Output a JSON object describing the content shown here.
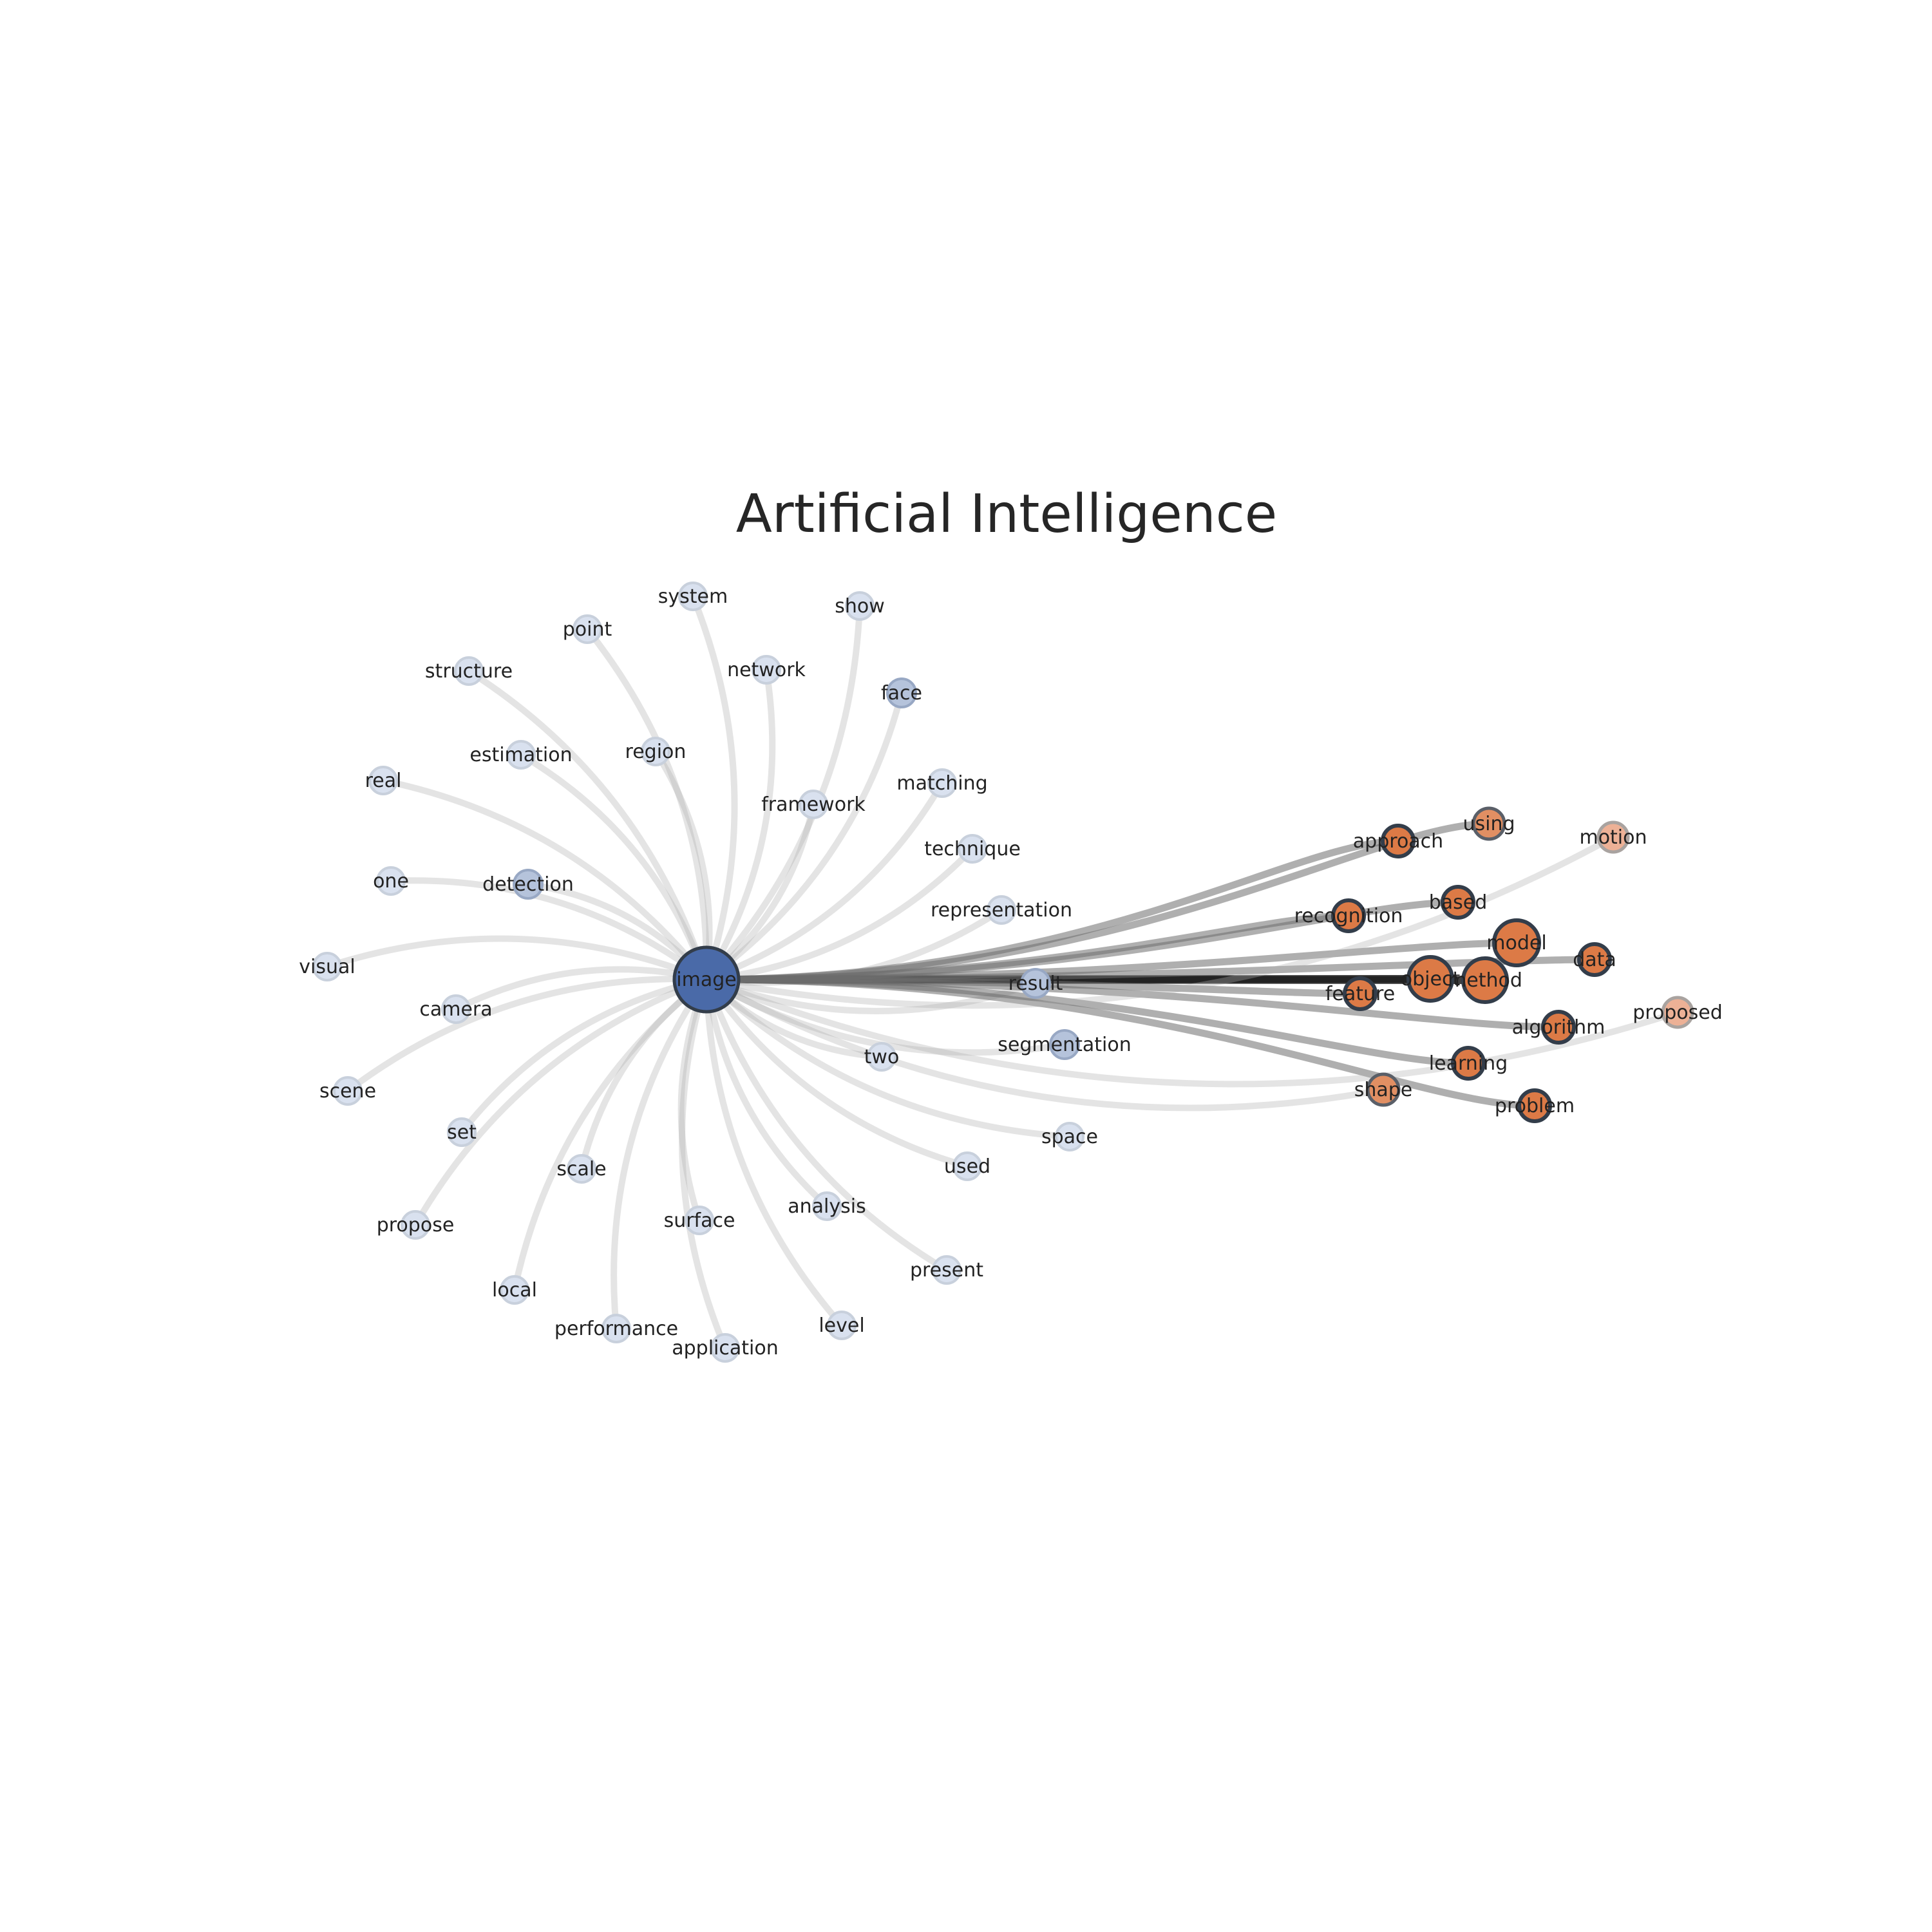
{
  "title": "Artificial Intelligence",
  "colors": {
    "blue_strong": "#4a6aa8",
    "blue_light": "#d9e1ef",
    "orange_strong": "#dc7a46",
    "orange_light": "#edb196",
    "stroke_dark": "#333d4a",
    "stroke_light": "#c8d0dc",
    "edge_grey": "#b3b3b3",
    "edge_dark": "#1f1f1f"
  },
  "nodes": [
    {
      "id": "image",
      "label": "image",
      "group": "hub-blue"
    },
    {
      "id": "system",
      "label": "system",
      "group": "blue-leaf"
    },
    {
      "id": "show",
      "label": "show",
      "group": "blue-leaf"
    },
    {
      "id": "point",
      "label": "point",
      "group": "blue-leaf"
    },
    {
      "id": "structure",
      "label": "structure",
      "group": "blue-leaf"
    },
    {
      "id": "network",
      "label": "network",
      "group": "blue-leaf"
    },
    {
      "id": "face",
      "label": "face",
      "group": "blue-mid"
    },
    {
      "id": "estimation",
      "label": "estimation",
      "group": "blue-leaf"
    },
    {
      "id": "region",
      "label": "region",
      "group": "blue-leaf"
    },
    {
      "id": "real",
      "label": "real",
      "group": "blue-leaf"
    },
    {
      "id": "matching",
      "label": "matching",
      "group": "blue-leaf"
    },
    {
      "id": "framework",
      "label": "framework",
      "group": "blue-leaf"
    },
    {
      "id": "technique",
      "label": "technique",
      "group": "blue-leaf"
    },
    {
      "id": "one",
      "label": "one",
      "group": "blue-leaf"
    },
    {
      "id": "detection",
      "label": "detection",
      "group": "blue-mid"
    },
    {
      "id": "representation",
      "label": "representation",
      "group": "blue-leaf"
    },
    {
      "id": "visual",
      "label": "visual",
      "group": "blue-leaf"
    },
    {
      "id": "result",
      "label": "result",
      "group": "blue-mid"
    },
    {
      "id": "camera",
      "label": "camera",
      "group": "blue-leaf"
    },
    {
      "id": "segmentation",
      "label": "segmentation",
      "group": "blue-mid"
    },
    {
      "id": "two",
      "label": "two",
      "group": "blue-leaf"
    },
    {
      "id": "scene",
      "label": "scene",
      "group": "blue-leaf"
    },
    {
      "id": "set",
      "label": "set",
      "group": "blue-leaf"
    },
    {
      "id": "space",
      "label": "space",
      "group": "blue-leaf"
    },
    {
      "id": "scale",
      "label": "scale",
      "group": "blue-leaf"
    },
    {
      "id": "used",
      "label": "used",
      "group": "blue-leaf"
    },
    {
      "id": "analysis",
      "label": "analysis",
      "group": "blue-leaf"
    },
    {
      "id": "surface",
      "label": "surface",
      "group": "blue-leaf"
    },
    {
      "id": "propose",
      "label": "propose",
      "group": "blue-leaf"
    },
    {
      "id": "present",
      "label": "present",
      "group": "blue-leaf"
    },
    {
      "id": "local",
      "label": "local",
      "group": "blue-leaf"
    },
    {
      "id": "level",
      "label": "level",
      "group": "blue-leaf"
    },
    {
      "id": "performance",
      "label": "performance",
      "group": "blue-leaf"
    },
    {
      "id": "application",
      "label": "application",
      "group": "blue-leaf"
    },
    {
      "id": "using",
      "label": "using",
      "group": "orange-mid"
    },
    {
      "id": "motion",
      "label": "motion",
      "group": "orange-light"
    },
    {
      "id": "approach",
      "label": "approach",
      "group": "orange"
    },
    {
      "id": "based",
      "label": "based",
      "group": "orange"
    },
    {
      "id": "recognition",
      "label": "recognition",
      "group": "orange"
    },
    {
      "id": "model",
      "label": "model",
      "group": "orange-hub"
    },
    {
      "id": "data",
      "label": "data",
      "group": "orange"
    },
    {
      "id": "object",
      "label": "object",
      "group": "orange-big"
    },
    {
      "id": "method",
      "label": "method",
      "group": "orange-big"
    },
    {
      "id": "feature",
      "label": "feature",
      "group": "orange"
    },
    {
      "id": "proposed",
      "label": "proposed",
      "group": "orange-light"
    },
    {
      "id": "algorithm",
      "label": "algorithm",
      "group": "orange"
    },
    {
      "id": "learning",
      "label": "learning",
      "group": "orange"
    },
    {
      "id": "shape",
      "label": "shape",
      "group": "orange-mid"
    },
    {
      "id": "problem",
      "label": "problem",
      "group": "orange"
    }
  ],
  "edges": [
    {
      "source": "image",
      "target": "system",
      "strength": "weak"
    },
    {
      "source": "image",
      "target": "show",
      "strength": "weak"
    },
    {
      "source": "image",
      "target": "point",
      "strength": "weak"
    },
    {
      "source": "image",
      "target": "structure",
      "strength": "weak"
    },
    {
      "source": "image",
      "target": "network",
      "strength": "weak"
    },
    {
      "source": "image",
      "target": "face",
      "strength": "weak"
    },
    {
      "source": "image",
      "target": "estimation",
      "strength": "weak"
    },
    {
      "source": "image",
      "target": "region",
      "strength": "weak"
    },
    {
      "source": "image",
      "target": "real",
      "strength": "weak"
    },
    {
      "source": "image",
      "target": "framework",
      "strength": "weak"
    },
    {
      "source": "image",
      "target": "one",
      "strength": "weak"
    },
    {
      "source": "image",
      "target": "detection",
      "strength": "weak"
    },
    {
      "source": "image",
      "target": "visual",
      "strength": "weak"
    },
    {
      "source": "image",
      "target": "camera",
      "strength": "weak"
    },
    {
      "source": "image",
      "target": "scene",
      "strength": "weak"
    },
    {
      "source": "image",
      "target": "set",
      "strength": "weak"
    },
    {
      "source": "image",
      "target": "scale",
      "strength": "weak"
    },
    {
      "source": "image",
      "target": "propose",
      "strength": "weak"
    },
    {
      "source": "image",
      "target": "local",
      "strength": "weak"
    },
    {
      "source": "image",
      "target": "performance",
      "strength": "weak"
    },
    {
      "source": "image",
      "target": "surface",
      "strength": "weak"
    },
    {
      "source": "image",
      "target": "application",
      "strength": "weak"
    },
    {
      "source": "image",
      "target": "analysis",
      "strength": "weak"
    },
    {
      "source": "image",
      "target": "level",
      "strength": "weak"
    },
    {
      "source": "image",
      "target": "result",
      "strength": "weak"
    },
    {
      "source": "image",
      "target": "two",
      "strength": "weak"
    },
    {
      "source": "image",
      "target": "matching",
      "strength": "weak"
    },
    {
      "source": "image",
      "target": "technique",
      "strength": "weak"
    },
    {
      "source": "image",
      "target": "representation",
      "strength": "weak"
    },
    {
      "source": "image",
      "target": "segmentation",
      "strength": "weak"
    },
    {
      "source": "image",
      "target": "space",
      "strength": "weak"
    },
    {
      "source": "image",
      "target": "used",
      "strength": "weak"
    },
    {
      "source": "image",
      "target": "present",
      "strength": "weak"
    },
    {
      "source": "image",
      "target": "method",
      "strength": "strong"
    },
    {
      "source": "image",
      "target": "object",
      "strength": "strong"
    },
    {
      "source": "image",
      "target": "model",
      "strength": "medium"
    },
    {
      "source": "image",
      "target": "based",
      "strength": "medium"
    },
    {
      "source": "image",
      "target": "recognition",
      "strength": "medium"
    },
    {
      "source": "image",
      "target": "approach",
      "strength": "medium"
    },
    {
      "source": "image",
      "target": "using",
      "strength": "medium"
    },
    {
      "source": "image",
      "target": "data",
      "strength": "medium"
    },
    {
      "source": "image",
      "target": "feature",
      "strength": "medium"
    },
    {
      "source": "image",
      "target": "algorithm",
      "strength": "medium"
    },
    {
      "source": "image",
      "target": "learning",
      "strength": "medium"
    },
    {
      "source": "image",
      "target": "problem",
      "strength": "medium"
    },
    {
      "source": "image",
      "target": "shape",
      "strength": "weak"
    },
    {
      "source": "image",
      "target": "motion",
      "strength": "weak"
    },
    {
      "source": "image",
      "target": "proposed",
      "strength": "weak"
    }
  ]
}
